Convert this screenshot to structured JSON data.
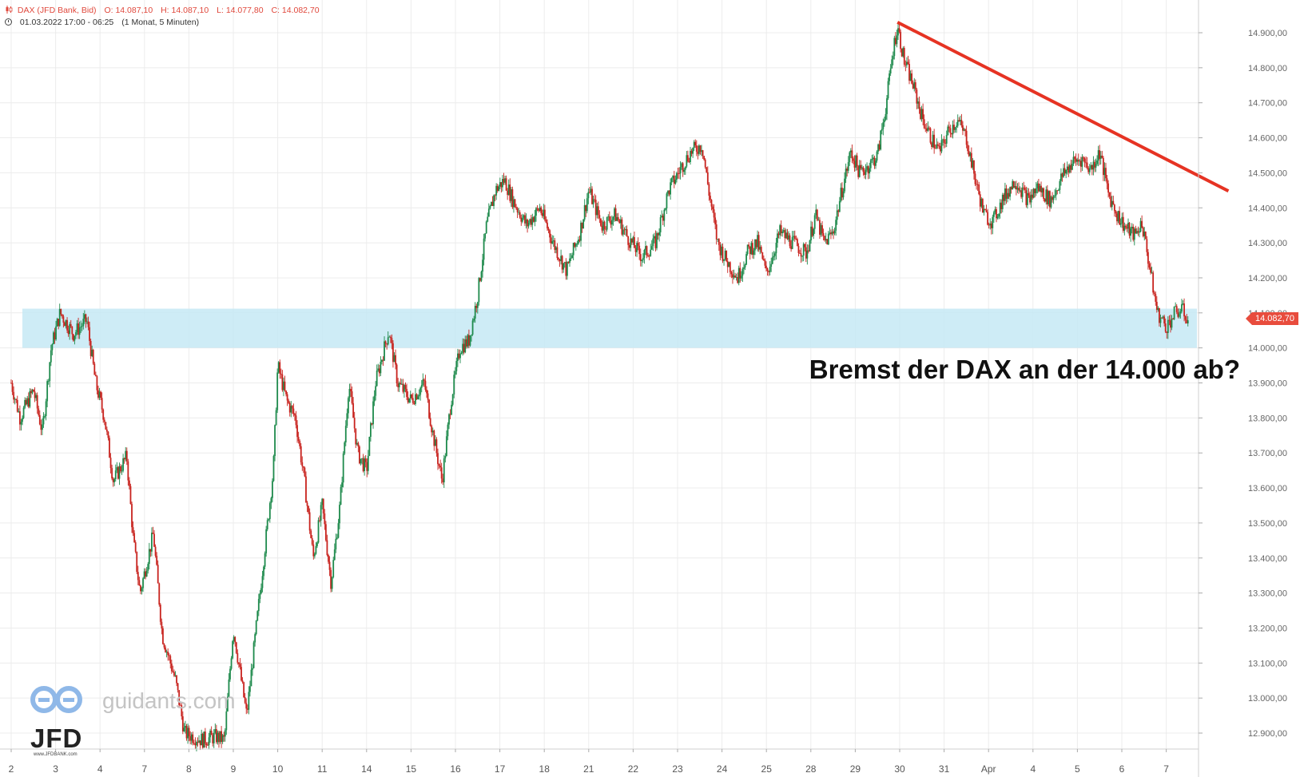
{
  "header": {
    "instrument": "DAX (JFD Bank, Bid)",
    "open": "O: 14.087,10",
    "high": "H: 14.087,10",
    "low": "L: 14.077,80",
    "close": "C: 14.082,70",
    "range": "01.03.2022 17:00 - 06:25",
    "period": "(1 Monat, 5 Minuten)"
  },
  "headline": "Bremst der DAX an der 14.000 ab?",
  "price_tag": "14.082,70",
  "watermark": {
    "site": "guidants.com",
    "brand": "JFD",
    "sub": "www.JFDBANK.com"
  },
  "colors": {
    "up": "#1e8a4c",
    "down": "#c8231e",
    "zone": "#c6e9f4",
    "trendline": "#e63323",
    "price_tag": "#e84c3d",
    "grid": "#ececec"
  },
  "chart_data": {
    "type": "candlestick",
    "title": "DAX (JFD Bank, Bid)",
    "interval": "5 Minuten",
    "ylim": [
      12880,
      14985
    ],
    "y_ticks": [
      12900,
      13000,
      13100,
      13200,
      13300,
      13400,
      13500,
      13600,
      13700,
      13800,
      13900,
      14000,
      14100,
      14200,
      14300,
      14400,
      14500,
      14600,
      14700,
      14800,
      14900
    ],
    "y_tick_labels": [
      "12.900,00",
      "13.000,00",
      "13.100,00",
      "13.200,00",
      "13.300,00",
      "13.400,00",
      "13.500,00",
      "13.600,00",
      "13.700,00",
      "13.800,00",
      "13.900,00",
      "14.000,00",
      "14.100,00",
      "14.200,00",
      "14.300,00",
      "14.400,00",
      "14.500,00",
      "14.600,00",
      "14.700,00",
      "14.800,00",
      "14.900,00"
    ],
    "x_ticks": [
      "2",
      "3",
      "4",
      "7",
      "8",
      "9",
      "10",
      "11",
      "14",
      "15",
      "16",
      "17",
      "18",
      "21",
      "22",
      "23",
      "24",
      "25",
      "28",
      "29",
      "30",
      "31",
      "Apr",
      "4",
      "5",
      "6",
      "7"
    ],
    "path": [
      [
        0,
        13900
      ],
      [
        0.2,
        13800
      ],
      [
        0.5,
        13880
      ],
      [
        0.7,
        13760
      ],
      [
        0.9,
        14000
      ],
      [
        1.1,
        14100
      ],
      [
        1.4,
        14040
      ],
      [
        1.7,
        14080
      ],
      [
        1.9,
        13900
      ],
      [
        2.1,
        13800
      ],
      [
        2.3,
        13620
      ],
      [
        2.6,
        13690
      ],
      [
        2.75,
        13450
      ],
      [
        2.9,
        13300
      ],
      [
        3.2,
        13470
      ],
      [
        3.4,
        13180
      ],
      [
        3.7,
        13050
      ],
      [
        3.9,
        12900
      ],
      [
        4.3,
        12880
      ],
      [
        4.6,
        12890
      ],
      [
        4.8,
        12880
      ],
      [
        5.0,
        13200
      ],
      [
        5.3,
        12950
      ],
      [
        5.6,
        13300
      ],
      [
        5.9,
        13650
      ],
      [
        6.0,
        13950
      ],
      [
        6.2,
        13850
      ],
      [
        6.4,
        13800
      ],
      [
        6.6,
        13620
      ],
      [
        6.8,
        13400
      ],
      [
        7.0,
        13550
      ],
      [
        7.2,
        13330
      ],
      [
        7.4,
        13550
      ],
      [
        7.6,
        13900
      ],
      [
        7.8,
        13700
      ],
      [
        8.0,
        13650
      ],
      [
        8.2,
        13900
      ],
      [
        8.5,
        14050
      ],
      [
        8.7,
        13900
      ],
      [
        9.0,
        13850
      ],
      [
        9.3,
        13900
      ],
      [
        9.5,
        13750
      ],
      [
        9.7,
        13620
      ],
      [
        9.9,
        13850
      ],
      [
        10.1,
        14000
      ],
      [
        10.3,
        14020
      ],
      [
        10.5,
        14150
      ],
      [
        10.7,
        14350
      ],
      [
        10.9,
        14450
      ],
      [
        11.1,
        14480
      ],
      [
        11.3,
        14420
      ],
      [
        11.6,
        14350
      ],
      [
        11.9,
        14400
      ],
      [
        12.2,
        14300
      ],
      [
        12.5,
        14220
      ],
      [
        12.8,
        14330
      ],
      [
        13.0,
        14450
      ],
      [
        13.3,
        14350
      ],
      [
        13.6,
        14380
      ],
      [
        13.9,
        14310
      ],
      [
        14.2,
        14260
      ],
      [
        14.5,
        14300
      ],
      [
        14.8,
        14450
      ],
      [
        15.1,
        14520
      ],
      [
        15.3,
        14560
      ],
      [
        15.55,
        14580
      ],
      [
        15.7,
        14450
      ],
      [
        15.9,
        14300
      ],
      [
        16.1,
        14250
      ],
      [
        16.35,
        14200
      ],
      [
        16.6,
        14280
      ],
      [
        16.8,
        14300
      ],
      [
        17.0,
        14210
      ],
      [
        17.3,
        14330
      ],
      [
        17.6,
        14300
      ],
      [
        17.9,
        14270
      ],
      [
        18.1,
        14380
      ],
      [
        18.3,
        14300
      ],
      [
        18.5,
        14330
      ],
      [
        18.7,
        14450
      ],
      [
        18.9,
        14560
      ],
      [
        19.1,
        14500
      ],
      [
        19.3,
        14520
      ],
      [
        19.5,
        14550
      ],
      [
        19.7,
        14700
      ],
      [
        19.85,
        14850
      ],
      [
        19.95,
        14920
      ],
      [
        20.1,
        14820
      ],
      [
        20.3,
        14750
      ],
      [
        20.5,
        14660
      ],
      [
        20.7,
        14600
      ],
      [
        20.9,
        14560
      ],
      [
        21.1,
        14620
      ],
      [
        21.3,
        14650
      ],
      [
        21.5,
        14600
      ],
      [
        21.7,
        14480
      ],
      [
        21.9,
        14380
      ],
      [
        22.1,
        14360
      ],
      [
        22.3,
        14420
      ],
      [
        22.6,
        14480
      ],
      [
        22.9,
        14420
      ],
      [
        23.1,
        14460
      ],
      [
        23.4,
        14420
      ],
      [
        23.7,
        14500
      ],
      [
        23.9,
        14530
      ],
      [
        24.1,
        14540
      ],
      [
        24.3,
        14510
      ],
      [
        24.5,
        14560
      ],
      [
        24.7,
        14440
      ],
      [
        24.9,
        14380
      ],
      [
        25.1,
        14340
      ],
      [
        25.3,
        14320
      ],
      [
        25.45,
        14360
      ],
      [
        25.6,
        14250
      ],
      [
        25.8,
        14100
      ],
      [
        26.0,
        14060
      ],
      [
        26.2,
        14100
      ],
      [
        26.35,
        14110
      ],
      [
        26.5,
        14080
      ]
    ],
    "support_zone": [
      14000,
      14112
    ],
    "trendline": [
      [
        19.95,
        14930
      ],
      [
        27.4,
        14448
      ]
    ],
    "last_price": 14082.7,
    "annotation": "Bremst der DAX an der 14.000 ab?"
  }
}
